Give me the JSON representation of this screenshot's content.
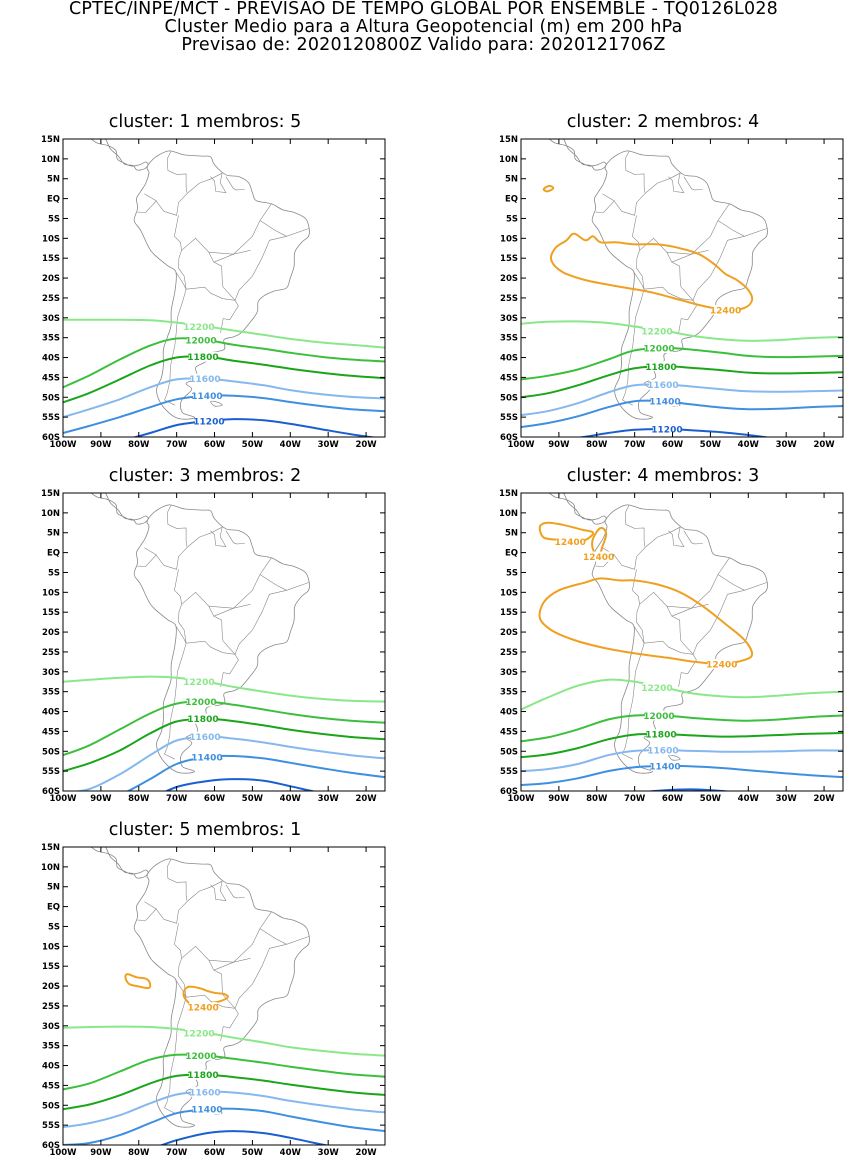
{
  "header": {
    "line1": "CPTEC/INPE/MCT - PREVISAO DE TEMPO GLOBAL POR ENSEMBLE - TQ0126L028",
    "line2": "Cluster Medio para a Altura Geopotencial (m) em 200 hPa",
    "line3": "Previsao de: 2020120800Z    Valido para: 2020121706Z"
  },
  "axes": {
    "lat_ticks": [
      "15N",
      "10N",
      "5N",
      "EQ",
      "5S",
      "10S",
      "15S",
      "20S",
      "25S",
      "30S",
      "35S",
      "40S",
      "45S",
      "50S",
      "55S",
      "60S"
    ],
    "lon_ticks": [
      "100W",
      "90W",
      "80W",
      "70W",
      "60W",
      "50W",
      "40W",
      "30W",
      "20W"
    ]
  },
  "colors": {
    "c11200": "#1a5fd0",
    "c11400": "#3f8fe0",
    "c11600": "#84b8ee",
    "c11800": "#1aa51a",
    "c12000": "#3cbf3c",
    "c12200": "#8ae88a",
    "c12400": "#f0a020",
    "coast": "#888888"
  },
  "panels": [
    {
      "title": "cluster:  1   membros:  5",
      "contours": [
        {
          "value": "12200",
          "color": "#8ae88a",
          "label": "12200",
          "lat": [
            -30.5,
            -30.5,
            -30.5,
            -30.6,
            -31.2,
            -32.2,
            -33.2,
            -34.3,
            -35.3,
            -36.2,
            -36.8,
            -37.5
          ]
        },
        {
          "value": "12000",
          "color": "#3cbf3c",
          "label": "12000",
          "lat": [
            -47.5,
            -44.5,
            -40.5,
            -37.0,
            -35.2,
            -35.6,
            -36.8,
            -37.8,
            -38.8,
            -39.8,
            -40.5,
            -41.0
          ]
        },
        {
          "value": "11800",
          "color": "#1aa51a",
          "label": "11800",
          "lat": [
            -51.3,
            -48.9,
            -45.5,
            -42.0,
            -40.0,
            -39.8,
            -40.8,
            -41.8,
            -42.8,
            -43.8,
            -44.6,
            -45.2
          ]
        },
        {
          "value": "11600",
          "color": "#84b8ee",
          "label": "11600",
          "lat": [
            -55.0,
            -53.0,
            -50.5,
            -47.5,
            -45.5,
            -45.3,
            -46.0,
            -47.0,
            -48.2,
            -49.2,
            -49.9,
            -50.3
          ]
        },
        {
          "value": "11400",
          "color": "#3f8fe0",
          "label": "11400",
          "lat": [
            -59.0,
            -57.2,
            -55.0,
            -52.5,
            -50.5,
            -49.6,
            -49.6,
            -50.2,
            -51.2,
            -52.2,
            -53.0,
            -53.5
          ]
        },
        {
          "value": "11200",
          "color": "#1a5fd0",
          "label": "11200",
          "lat": [
            -62.0,
            -62.0,
            -61.0,
            -59.0,
            -57.0,
            -56.0,
            -55.5,
            -55.8,
            -56.7,
            -58.0,
            -59.3,
            -60.5
          ]
        }
      ],
      "highs": []
    },
    {
      "title": "cluster:  2   membros:  4",
      "contours": [
        {
          "value": "12200",
          "color": "#8ae88a",
          "label": "12200",
          "lat": [
            -31.5,
            -31.0,
            -30.9,
            -31.3,
            -32.2,
            -33.3,
            -34.5,
            -35.4,
            -35.8,
            -35.6,
            -35.1,
            -34.8
          ]
        },
        {
          "value": "12000",
          "color": "#3cbf3c",
          "label": "12000",
          "lat": [
            -45.5,
            -44.6,
            -43.0,
            -40.5,
            -38.2,
            -37.6,
            -38.0,
            -38.8,
            -39.6,
            -39.9,
            -39.8,
            -39.6
          ]
        },
        {
          "value": "11800",
          "color": "#1aa51a",
          "label": "11800",
          "lat": [
            -50.0,
            -49.0,
            -47.0,
            -44.5,
            -42.7,
            -42.2,
            -42.6,
            -43.2,
            -43.8,
            -44.0,
            -43.9,
            -43.7
          ]
        },
        {
          "value": "11600",
          "color": "#84b8ee",
          "label": "11600",
          "lat": [
            -54.5,
            -53.5,
            -51.5,
            -48.8,
            -47.0,
            -46.8,
            -47.3,
            -48.0,
            -48.5,
            -48.6,
            -48.5,
            -48.3
          ]
        },
        {
          "value": "11400",
          "color": "#3f8fe0",
          "label": "11400",
          "lat": [
            -57.5,
            -56.5,
            -54.8,
            -52.5,
            -51.0,
            -51.0,
            -51.8,
            -52.6,
            -53.0,
            -52.9,
            -52.5,
            -52.2
          ]
        },
        {
          "value": "11200",
          "color": "#1a5fd0",
          "label": "11200",
          "lat": [
            -61.5,
            -61.0,
            -60.2,
            -59.0,
            -58.2,
            -58.0,
            -58.3,
            -58.8,
            -59.5,
            -60.5,
            -61.3,
            -62.0
          ]
        }
      ],
      "highs": [
        {
          "label": "12400",
          "color": "#f0a020",
          "pts": [
            [
              -88,
              -10.5
            ],
            [
              -86,
              -8.8
            ],
            [
              -83,
              -10.5
            ],
            [
              -81,
              -9.5
            ],
            [
              -79,
              -11.0
            ],
            [
              -75,
              -11.0
            ],
            [
              -70,
              -11.5
            ],
            [
              -64,
              -11.5
            ],
            [
              -58,
              -12.5
            ],
            [
              -53,
              -14.0
            ],
            [
              -49,
              -16.5
            ],
            [
              -46,
              -19.0
            ],
            [
              -43,
              -20.5
            ],
            [
              -40,
              -23.0
            ],
            [
              -39,
              -25.5
            ],
            [
              -41,
              -27.5
            ],
            [
              -46,
              -28.0
            ],
            [
              -52,
              -27.0
            ],
            [
              -58,
              -25.5
            ],
            [
              -66,
              -23.5
            ],
            [
              -75,
              -22.0
            ],
            [
              -83,
              -20.5
            ],
            [
              -89,
              -18.5
            ],
            [
              -92,
              -15.5
            ],
            [
              -91,
              -12.5
            ]
          ]
        },
        {
          "label": "",
          "color": "#f0a020",
          "pts": [
            [
              -94,
              2.4
            ],
            [
              -92.5,
              3.2
            ],
            [
              -91.5,
              2.6
            ],
            [
              -93,
              1.8
            ]
          ]
        }
      ]
    },
    {
      "title": "cluster:  3   membros:  2",
      "contours": [
        {
          "value": "12200",
          "color": "#8ae88a",
          "label": "12200",
          "lat": [
            -32.5,
            -32.0,
            -31.5,
            -31.2,
            -31.5,
            -32.5,
            -33.8,
            -35.0,
            -36.0,
            -36.8,
            -37.3,
            -37.5
          ]
        },
        {
          "value": "12000",
          "color": "#3cbf3c",
          "label": "12000",
          "lat": [
            -51.0,
            -48.5,
            -44.5,
            -40.5,
            -38.0,
            -37.5,
            -38.3,
            -39.5,
            -40.6,
            -41.6,
            -42.3,
            -42.8
          ]
        },
        {
          "value": "11800",
          "color": "#1aa51a",
          "label": "11800",
          "lat": [
            -55.0,
            -53.0,
            -49.8,
            -45.5,
            -42.5,
            -41.8,
            -42.4,
            -43.5,
            -44.6,
            -45.6,
            -46.4,
            -47.0
          ]
        },
        {
          "value": "11600",
          "color": "#84b8ee",
          "label": "11600",
          "lat": [
            -60.5,
            -59.5,
            -55.8,
            -51.0,
            -47.3,
            -46.3,
            -46.8,
            -47.8,
            -48.9,
            -50.0,
            -51.0,
            -51.8
          ]
        },
        {
          "value": "11400",
          "color": "#3f8fe0",
          "label": "11400",
          "lat": [
            -64.0,
            -63.5,
            -61.0,
            -57.0,
            -53.2,
            -51.4,
            -51.2,
            -51.8,
            -52.9,
            -54.2,
            -55.4,
            -56.5
          ]
        },
        {
          "value": "",
          "color": "#1a5fd0",
          "label": "",
          "lat": [
            -66.0,
            -66.0,
            -65.0,
            -62.0,
            -59.0,
            -57.5,
            -57.0,
            -57.4,
            -58.8,
            -60.5,
            -62.0,
            -63.0
          ]
        }
      ],
      "highs": []
    },
    {
      "title": "cluster:  4   membros:  3",
      "contours": [
        {
          "value": "12200",
          "color": "#8ae88a",
          "label": "12200",
          "lat": [
            -39.5,
            -36.5,
            -33.5,
            -32.0,
            -32.5,
            -34.0,
            -35.4,
            -36.2,
            -36.4,
            -36.0,
            -35.4,
            -35.0
          ]
        },
        {
          "value": "12000",
          "color": "#3cbf3c",
          "label": "12000",
          "lat": [
            -47.5,
            -46.5,
            -44.5,
            -42.0,
            -41.0,
            -41.0,
            -41.6,
            -42.1,
            -42.3,
            -42.0,
            -41.4,
            -41.0
          ]
        },
        {
          "value": "11800",
          "color": "#1aa51a",
          "label": "11800",
          "lat": [
            -51.5,
            -50.8,
            -49.2,
            -47.0,
            -45.8,
            -45.7,
            -46.0,
            -46.3,
            -46.2,
            -45.9,
            -45.6,
            -45.4
          ]
        },
        {
          "value": "11600",
          "color": "#84b8ee",
          "label": "11600",
          "lat": [
            -55.0,
            -54.5,
            -53.2,
            -51.0,
            -49.9,
            -49.7,
            -49.9,
            -50.1,
            -50.1,
            -50.0,
            -49.8,
            -49.8
          ]
        },
        {
          "value": "11400",
          "color": "#3f8fe0",
          "label": "11400",
          "lat": [
            -58.5,
            -58.0,
            -56.8,
            -55.0,
            -54.0,
            -53.7,
            -53.8,
            -54.2,
            -54.8,
            -55.4,
            -56.0,
            -56.5
          ]
        },
        {
          "value": "",
          "color": "#1a5fd0",
          "label": "",
          "lat": [
            -63.0,
            -63.0,
            -62.5,
            -61.5,
            -60.5,
            -59.8,
            -59.6,
            -60.0,
            -60.8,
            -61.8,
            -62.8,
            -63.5
          ]
        }
      ],
      "highs": [
        {
          "label": "12400",
          "color": "#f0a020",
          "pts": [
            [
              -95,
              6.5
            ],
            [
              -93,
              7.5
            ],
            [
              -89,
              7.0
            ],
            [
              -84,
              5.8
            ],
            [
              -81,
              5.0
            ],
            [
              -83,
              3.2
            ],
            [
              -87,
              2.8
            ],
            [
              -90,
              3.2
            ],
            [
              -94,
              3.8
            ]
          ]
        },
        {
          "label": "12400",
          "color": "#f0a020",
          "pts": [
            [
              -81,
              3.5
            ],
            [
              -79,
              6.2
            ],
            [
              -77.5,
              4.8
            ],
            [
              -78.5,
              1.5
            ],
            [
              -79.5,
              -1.0
            ],
            [
              -81,
              0.8
            ]
          ]
        },
        {
          "label": "12400",
          "color": "#f0a020",
          "pts": [
            [
              -83,
              -7.5
            ],
            [
              -79,
              -6.5
            ],
            [
              -74,
              -7.0
            ],
            [
              -70,
              -7.0
            ],
            [
              -64,
              -8.0
            ],
            [
              -58,
              -10.0
            ],
            [
              -52,
              -13.5
            ],
            [
              -46,
              -18.0
            ],
            [
              -41,
              -22.0
            ],
            [
              -39,
              -25.5
            ],
            [
              -41,
              -27.0
            ],
            [
              -47,
              -28.0
            ],
            [
              -54,
              -27.5
            ],
            [
              -61,
              -26.5
            ],
            [
              -69,
              -25.5
            ],
            [
              -78,
              -24.0
            ],
            [
              -86,
              -22.0
            ],
            [
              -92,
              -19.5
            ],
            [
              -95,
              -16.5
            ],
            [
              -94,
              -12.5
            ],
            [
              -90,
              -9.5
            ]
          ]
        }
      ]
    },
    {
      "title": "cluster:  5   membros:  1",
      "contours": [
        {
          "value": "12200",
          "color": "#8ae88a",
          "label": "12200",
          "lat": [
            -30.5,
            -30.3,
            -30.2,
            -30.3,
            -30.8,
            -31.8,
            -33.0,
            -34.2,
            -35.4,
            -36.3,
            -37.0,
            -37.5
          ]
        },
        {
          "value": "12000",
          "color": "#3cbf3c",
          "label": "12000",
          "lat": [
            -46.0,
            -44.5,
            -41.5,
            -38.5,
            -37.3,
            -37.5,
            -38.3,
            -39.3,
            -40.3,
            -41.3,
            -42.2,
            -42.8
          ]
        },
        {
          "value": "11800",
          "color": "#1aa51a",
          "label": "11800",
          "lat": [
            -51.0,
            -49.8,
            -47.5,
            -44.5,
            -42.6,
            -42.3,
            -42.9,
            -43.8,
            -44.8,
            -45.8,
            -46.7,
            -47.4
          ]
        },
        {
          "value": "11600",
          "color": "#84b8ee",
          "label": "11600",
          "lat": [
            -55.5,
            -54.5,
            -52.5,
            -49.5,
            -47.3,
            -46.6,
            -46.8,
            -47.7,
            -48.9,
            -50.0,
            -51.0,
            -51.8
          ]
        },
        {
          "value": "11400",
          "color": "#3f8fe0",
          "label": "11400",
          "lat": [
            -60.0,
            -59.5,
            -57.5,
            -54.5,
            -52.0,
            -51.0,
            -50.9,
            -51.5,
            -52.8,
            -54.2,
            -55.5,
            -56.5
          ]
        },
        {
          "value": "",
          "color": "#1a5fd0",
          "label": "",
          "lat": [
            -64.0,
            -64.0,
            -63.0,
            -61.0,
            -58.8,
            -57.0,
            -56.5,
            -57.0,
            -58.2,
            -59.8,
            -61.2,
            -62.5
          ]
        }
      ],
      "highs": [
        {
          "label": "",
          "color": "#f0a020",
          "pts": [
            [
              -83,
              -17.0
            ],
            [
              -80.5,
              -17.8
            ],
            [
              -78,
              -18.2
            ],
            [
              -77,
              -19.5
            ],
            [
              -77.5,
              -20.5
            ],
            [
              -80.5,
              -20.0
            ],
            [
              -82.5,
              -19.5
            ],
            [
              -83.5,
              -18.0
            ]
          ]
        },
        {
          "label": "12400",
          "color": "#f0a020",
          "pts": [
            [
              -67,
              -20.2
            ],
            [
              -64,
              -20.5
            ],
            [
              -62,
              -21.2
            ],
            [
              -60,
              -21.7
            ],
            [
              -57.5,
              -22.0
            ],
            [
              -56.5,
              -22.8
            ],
            [
              -58.5,
              -23.8
            ],
            [
              -61,
              -24.3
            ],
            [
              -63,
              -25.3
            ],
            [
              -65.5,
              -25.0
            ],
            [
              -67.5,
              -23.5
            ],
            [
              -68.2,
              -21.8
            ]
          ]
        }
      ]
    }
  ]
}
